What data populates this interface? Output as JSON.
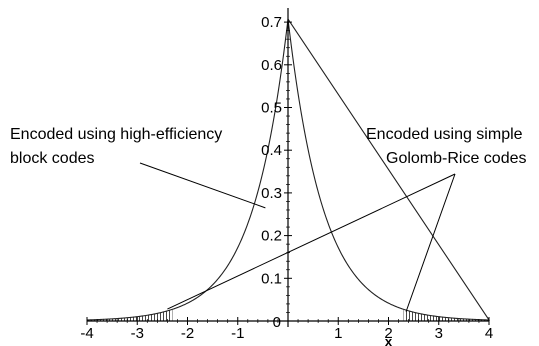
{
  "chart_data": {
    "type": "line",
    "xlabel": "x",
    "ylabel": "",
    "xlim": [
      -4,
      4
    ],
    "ylim": [
      0,
      0.72
    ],
    "x_ticks": [
      -4,
      -3,
      -2,
      -1,
      0,
      1,
      2,
      3,
      4
    ],
    "x_tick_labels": [
      "-4",
      "-3",
      "-2",
      "-1",
      "0",
      "1",
      "2",
      "3",
      "4"
    ],
    "y_ticks": [
      0.1,
      0.2,
      0.3,
      0.4,
      0.5,
      0.6,
      0.7
    ],
    "y_tick_labels": [
      "0.1",
      "0.2",
      "0.3",
      "0.4",
      "0.5",
      "0.6",
      "0.7"
    ],
    "y_zero_label": "0",
    "grid": false,
    "series": [
      {
        "function": "laplace_density",
        "peak": 0.7071,
        "scale": 0.7071,
        "color": "#222222"
      }
    ],
    "shaded_regions": [
      {
        "from": -4,
        "to": -2.3
      },
      {
        "from": 2.3,
        "to": 4
      }
    ],
    "annotations": [
      {
        "lines": [
          "Encoded using high-efficiency",
          "block codes"
        ],
        "points_to": [
          {
            "x": -0.45,
            "y": 0.265
          }
        ]
      },
      {
        "lines": [
          "Encoded using simple",
          "Golomb-Rice codes"
        ],
        "points_to": [
          {
            "x": -2.4,
            "y": 0.028
          },
          {
            "x": 2.35,
            "y": 0.022
          }
        ]
      }
    ]
  }
}
